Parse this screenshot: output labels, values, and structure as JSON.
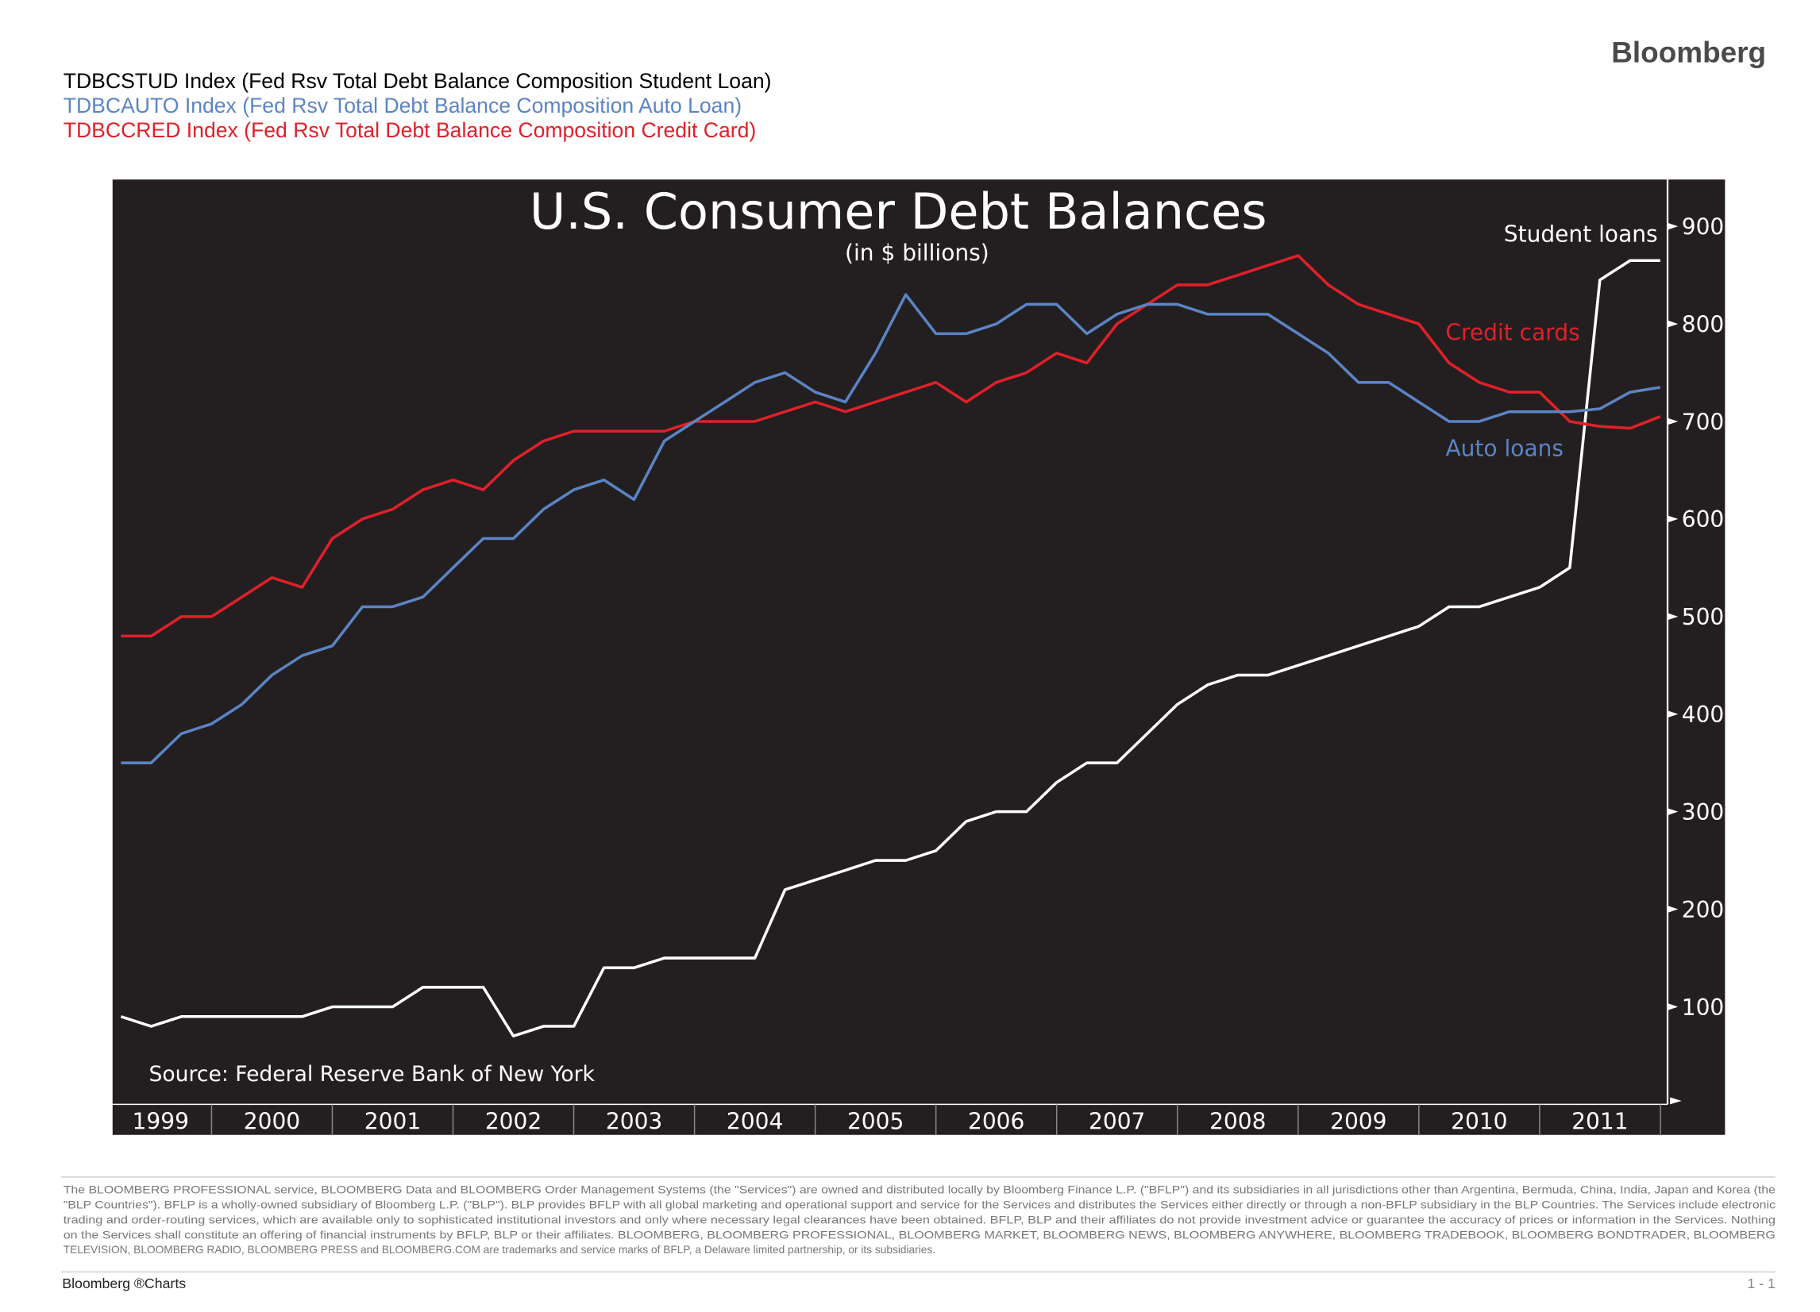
{
  "header": {
    "brand": "Bloomberg",
    "indices": [
      {
        "text": "TDBCSTUD Index (Fed Rsv Total Debt Balance Composition Student Loan)",
        "color": "#000000"
      },
      {
        "text": "TDBCAUTO Index (Fed Rsv Total Debt Balance Composition Auto Loan)",
        "color": "#5b84c4"
      },
      {
        "text": "TDBCCRED Index (Fed Rsv Total Debt Balance Composition Credit Card)",
        "color": "#e0202a"
      }
    ]
  },
  "chart_data": {
    "type": "line",
    "title": "U.S. Consumer Debt Balances",
    "subtitle": "(in $ billions)",
    "source": "Source: Federal Reserve Bank of New York",
    "background": "#231f20",
    "x": [
      1999.25,
      1999.5,
      1999.75,
      2000,
      2000.25,
      2000.5,
      2000.75,
      2001,
      2001.25,
      2001.5,
      2001.75,
      2002,
      2002.25,
      2002.5,
      2002.75,
      2003,
      2003.25,
      2003.5,
      2003.75,
      2004,
      2004.25,
      2004.5,
      2004.75,
      2005,
      2005.25,
      2005.5,
      2005.75,
      2006,
      2006.25,
      2006.5,
      2006.75,
      2007,
      2007.25,
      2007.5,
      2007.75,
      2008,
      2008.25,
      2008.5,
      2008.75,
      2009,
      2009.25,
      2009.5,
      2009.75,
      2010,
      2010.25,
      2010.5,
      2010.75,
      2011,
      2011.25,
      2011.5,
      2011.75,
      2012
    ],
    "series": [
      {
        "name": "Student loans",
        "color": "#ffffff",
        "values": [
          90,
          80,
          90,
          90,
          90,
          90,
          90,
          100,
          100,
          100,
          120,
          120,
          120,
          70,
          80,
          80,
          140,
          140,
          150,
          150,
          150,
          150,
          220,
          230,
          240,
          250,
          250,
          260,
          290,
          300,
          300,
          330,
          350,
          350,
          380,
          410,
          430,
          440,
          440,
          450,
          460,
          470,
          480,
          490,
          510,
          510,
          520,
          530,
          550,
          845,
          865,
          865
        ]
      },
      {
        "name": "Credit cards",
        "color": "#e0202a",
        "values": [
          480,
          480,
          500,
          500,
          520,
          540,
          530,
          580,
          600,
          610,
          630,
          640,
          630,
          660,
          680,
          690,
          690,
          690,
          690,
          700,
          700,
          700,
          710,
          720,
          710,
          720,
          730,
          740,
          720,
          740,
          750,
          770,
          760,
          800,
          820,
          840,
          840,
          850,
          860,
          870,
          840,
          820,
          810,
          800,
          760,
          740,
          730,
          730,
          700,
          695,
          693,
          705
        ]
      },
      {
        "name": "Auto loans",
        "color": "#5b84c4",
        "values": [
          350,
          350,
          380,
          390,
          410,
          440,
          460,
          470,
          510,
          510,
          520,
          550,
          580,
          580,
          610,
          630,
          640,
          620,
          680,
          700,
          720,
          740,
          750,
          730,
          720,
          770,
          830,
          790,
          790,
          800,
          820,
          820,
          790,
          810,
          820,
          820,
          810,
          810,
          810,
          790,
          770,
          740,
          740,
          720,
          700,
          700,
          710,
          710,
          710,
          713,
          730,
          735
        ]
      }
    ],
    "xlim": [
      1999.18,
      2012.06
    ],
    "xticks": [
      1999,
      2000,
      2001,
      2002,
      2003,
      2004,
      2005,
      2006,
      2007,
      2008,
      2009,
      2010,
      2011
    ],
    "ylim": [
      0,
      948
    ],
    "yticks": [
      100,
      200,
      300,
      400,
      500,
      600,
      700,
      800,
      900
    ]
  },
  "footer": {
    "disclaimer": [
      "The BLOOMBERG PROFESSIONAL service, BLOOMBERG Data and BLOOMBERG Order Management Systems (the \"Services\") are owned and distributed locally by Bloomberg Finance L.P. (\"BFLP\") and its subsidiaries in all jurisdictions other than Argentina, Bermuda, China, India, Japan and Korea (the",
      "\"BLP Countries\"). BFLP is a wholly-owned subsidiary of Bloomberg L.P. (\"BLP\"). BLP provides BFLP with all global marketing and operational support and service for the Services and distributes the Services either directly or through a non-BFLP subsidiary in the BLP Countries. The Services include electronic",
      "trading and order-routing services, which are available only to sophisticated institutional investors and only where necessary legal clearances have been obtained. BFLP, BLP and their affiliates do not provide investment advice or guarantee the accuracy of prices or information in the Services. Nothing",
      "on the Services shall constitute an offering of financial instruments by BFLP, BLP or their affiliates. BLOOMBERG, BLOOMBERG PROFESSIONAL, BLOOMBERG MARKET, BLOOMBERG NEWS, BLOOMBERG ANYWHERE, BLOOMBERG TRADEBOOK, BLOOMBERG BONDTRADER, BLOOMBERG",
      "TELEVISION, BLOOMBERG RADIO, BLOOMBERG PRESS and BLOOMBERG.COM are trademarks and service marks of BFLP, a Delaware limited partnership, or its subsidiaries."
    ],
    "brand": "Bloomberg ®Charts",
    "page": "1 - 1"
  }
}
